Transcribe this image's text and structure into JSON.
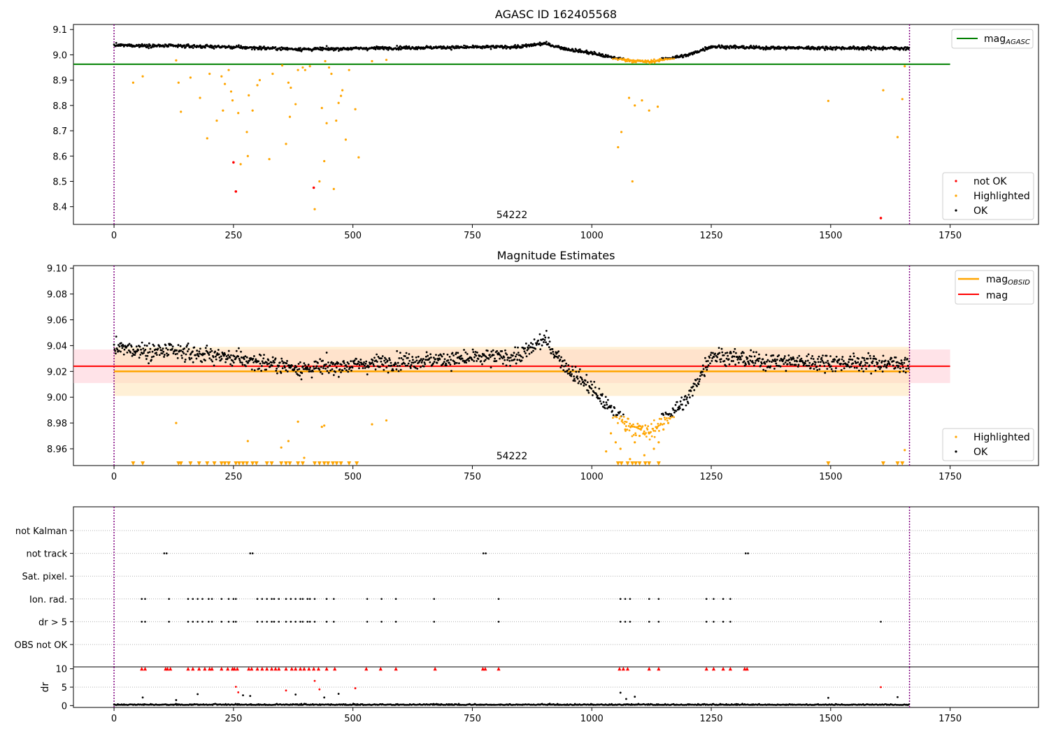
{
  "figure": {
    "colors": {
      "ok": "#000000",
      "highlighted": "#ffa500",
      "not_ok": "#ff0000",
      "mag_agasc": "#008000",
      "mag_obsid": "#ffa500",
      "mag": "#ff0000",
      "obs_boundary": "#800080",
      "band_mag": "#ffc0cb",
      "band_obsid": "#ffe4b5"
    }
  },
  "chart_data": [
    {
      "type": "scatter",
      "title": "AGASC ID 162405568",
      "annotation": "54222",
      "xlim": [
        -85,
        1935
      ],
      "ylim": [
        8.33,
        9.12
      ],
      "x_ticks": [
        0,
        250,
        500,
        750,
        1000,
        1250,
        1500,
        1750
      ],
      "y_ticks": [
        8.4,
        8.5,
        8.6,
        8.7,
        8.8,
        8.9,
        9.0,
        9.1
      ],
      "obs_boundaries": [
        0,
        1665
      ],
      "mag_agasc": 8.963,
      "legend_lines": [
        {
          "label": "mag",
          "sub": "AGASC",
          "position": "top-right"
        }
      ],
      "legend_points": [
        "not OK",
        "Highlighted",
        "OK"
      ],
      "ok_trend": [
        [
          0,
          9.038
        ],
        [
          200,
          9.033
        ],
        [
          400,
          9.022
        ],
        [
          600,
          9.028
        ],
        [
          750,
          9.03
        ],
        [
          850,
          9.032
        ],
        [
          900,
          9.045
        ],
        [
          950,
          9.022
        ],
        [
          1000,
          9.007
        ],
        [
          1040,
          8.99
        ],
        [
          1080,
          8.978
        ],
        [
          1120,
          8.972
        ],
        [
          1160,
          8.986
        ],
        [
          1200,
          8.998
        ],
        [
          1250,
          9.033
        ],
        [
          1350,
          9.028
        ],
        [
          1500,
          9.027
        ],
        [
          1665,
          9.026
        ]
      ],
      "highlighted_outliers": [
        [
          40,
          8.89
        ],
        [
          60,
          8.915
        ],
        [
          130,
          8.978
        ],
        [
          135,
          8.89
        ],
        [
          140,
          8.775
        ],
        [
          160,
          8.91
        ],
        [
          180,
          8.83
        ],
        [
          195,
          8.67
        ],
        [
          200,
          8.925
        ],
        [
          215,
          8.74
        ],
        [
          225,
          8.915
        ],
        [
          228,
          8.78
        ],
        [
          232,
          8.885
        ],
        [
          240,
          8.94
        ],
        [
          245,
          8.855
        ],
        [
          248,
          8.82
        ],
        [
          260,
          8.77
        ],
        [
          265,
          8.568
        ],
        [
          278,
          8.695
        ],
        [
          280,
          8.6
        ],
        [
          282,
          8.84
        ],
        [
          290,
          8.78
        ],
        [
          300,
          8.88
        ],
        [
          305,
          8.9
        ],
        [
          325,
          8.588
        ],
        [
          332,
          8.925
        ],
        [
          352,
          8.958
        ],
        [
          360,
          8.648
        ],
        [
          365,
          8.89
        ],
        [
          368,
          8.755
        ],
        [
          370,
          8.87
        ],
        [
          380,
          8.805
        ],
        [
          385,
          8.94
        ],
        [
          395,
          8.95
        ],
        [
          400,
          8.94
        ],
        [
          410,
          8.955
        ],
        [
          420,
          8.39
        ],
        [
          430,
          8.5
        ],
        [
          435,
          8.79
        ],
        [
          440,
          8.58
        ],
        [
          442,
          8.975
        ],
        [
          445,
          8.73
        ],
        [
          450,
          8.95
        ],
        [
          455,
          8.925
        ],
        [
          460,
          8.47
        ],
        [
          465,
          8.74
        ],
        [
          470,
          8.81
        ],
        [
          475,
          8.838
        ],
        [
          478,
          8.86
        ],
        [
          485,
          8.665
        ],
        [
          492,
          8.94
        ],
        [
          505,
          8.785
        ],
        [
          512,
          8.595
        ],
        [
          540,
          8.975
        ],
        [
          570,
          8.98
        ],
        [
          1055,
          8.635
        ],
        [
          1062,
          8.695
        ],
        [
          1078,
          8.83
        ],
        [
          1085,
          8.5
        ],
        [
          1090,
          8.8
        ],
        [
          1105,
          8.82
        ],
        [
          1120,
          8.78
        ],
        [
          1138,
          8.795
        ],
        [
          1495,
          8.818
        ],
        [
          1610,
          8.86
        ],
        [
          1640,
          8.675
        ],
        [
          1650,
          8.825
        ],
        [
          1655,
          8.955
        ]
      ],
      "not_ok_points": [
        [
          250,
          8.575
        ],
        [
          255,
          8.46
        ],
        [
          418,
          8.475
        ],
        [
          1605,
          8.355
        ]
      ]
    },
    {
      "type": "scatter",
      "title": "Magnitude Estimates",
      "annotation": "54222",
      "xlim": [
        -85,
        1935
      ],
      "ylim": [
        8.947,
        9.102
      ],
      "x_ticks": [
        0,
        250,
        500,
        750,
        1000,
        1250,
        1500,
        1750
      ],
      "y_ticks": [
        8.96,
        8.98,
        9.0,
        9.02,
        9.04,
        9.06,
        9.08,
        9.1
      ],
      "obs_boundaries": [
        0,
        1665
      ],
      "mag": 9.024,
      "mag_band": [
        9.011,
        9.037
      ],
      "mag_obsid": 9.02,
      "mag_obsid_band": [
        9.001,
        9.039
      ],
      "legend_lines": [
        {
          "label": "mag",
          "sub": "OBSID"
        },
        {
          "label": "mag",
          "sub": ""
        }
      ],
      "legend_points": [
        "Highlighted",
        "OK"
      ],
      "ok_trend": [
        [
          0,
          9.038
        ],
        [
          200,
          9.033
        ],
        [
          400,
          9.022
        ],
        [
          600,
          9.028
        ],
        [
          750,
          9.03
        ],
        [
          850,
          9.032
        ],
        [
          900,
          9.045
        ],
        [
          950,
          9.022
        ],
        [
          1000,
          9.007
        ],
        [
          1040,
          8.99
        ],
        [
          1080,
          8.978
        ],
        [
          1120,
          8.972
        ],
        [
          1160,
          8.986
        ],
        [
          1200,
          8.998
        ],
        [
          1250,
          9.033
        ],
        [
          1350,
          9.028
        ],
        [
          1500,
          9.027
        ],
        [
          1665,
          9.026
        ]
      ],
      "highlighted_points": [
        [
          130,
          8.98
        ],
        [
          280,
          8.966
        ],
        [
          350,
          8.961
        ],
        [
          365,
          8.966
        ],
        [
          385,
          8.981
        ],
        [
          398,
          8.953
        ],
        [
          435,
          8.977
        ],
        [
          440,
          8.978
        ],
        [
          540,
          8.979
        ],
        [
          570,
          8.982
        ],
        [
          1030,
          8.958
        ],
        [
          1040,
          8.972
        ],
        [
          1050,
          8.965
        ],
        [
          1060,
          8.96
        ],
        [
          1070,
          8.975
        ],
        [
          1080,
          8.952
        ],
        [
          1090,
          8.965
        ],
        [
          1100,
          8.97
        ],
        [
          1110,
          8.955
        ],
        [
          1120,
          8.972
        ],
        [
          1130,
          8.96
        ],
        [
          1140,
          8.965
        ],
        [
          1150,
          8.975
        ],
        [
          1160,
          8.98
        ],
        [
          1655,
          8.959
        ]
      ],
      "lower_limit_markers": [
        40,
        60,
        135,
        140,
        160,
        178,
        195,
        210,
        225,
        232,
        240,
        255,
        262,
        270,
        278,
        290,
        298,
        320,
        330,
        350,
        360,
        368,
        385,
        395,
        420,
        430,
        440,
        448,
        458,
        466,
        475,
        492,
        508,
        1055,
        1062,
        1075,
        1085,
        1092,
        1100,
        1112,
        1120,
        1140,
        1495,
        1610,
        1640,
        1650
      ]
    },
    {
      "type": "scatter",
      "title": "",
      "xlim": [
        -85,
        1935
      ],
      "x_ticks": [
        0,
        250,
        500,
        750,
        1000,
        1250,
        1500,
        1750
      ],
      "obs_boundaries": [
        0,
        1665
      ],
      "flag_rows": [
        "not Kalman",
        "not track",
        "Sat. pixel.",
        "Ion. rad.",
        "dr > 5",
        "OBS not OK"
      ],
      "flag_points": {
        "not track": [
          105,
          110,
          285,
          290,
          773,
          778,
          1322,
          1327
        ],
        "Ion. rad.": [
          58,
          65,
          115,
          155,
          165,
          175,
          185,
          198,
          205,
          225,
          240,
          250,
          255,
          300,
          310,
          320,
          330,
          335,
          345,
          360,
          370,
          380,
          390,
          395,
          405,
          410,
          420,
          445,
          460,
          530,
          560,
          590,
          670,
          805,
          1060,
          1070,
          1080,
          1120,
          1140,
          1240,
          1255,
          1275,
          1290
        ],
        "dr > 5": [
          58,
          65,
          115,
          155,
          165,
          175,
          185,
          198,
          205,
          225,
          240,
          250,
          255,
          300,
          310,
          320,
          330,
          335,
          345,
          360,
          370,
          380,
          390,
          395,
          405,
          410,
          420,
          445,
          460,
          530,
          560,
          590,
          670,
          805,
          1060,
          1070,
          1080,
          1120,
          1140,
          1240,
          1255,
          1275,
          1290,
          1605
        ]
      }
    },
    {
      "type": "scatter",
      "ylabel": "dr",
      "xlim": [
        -85,
        1935
      ],
      "ylim": [
        -0.5,
        10.5
      ],
      "x_ticks": [
        0,
        250,
        500,
        750,
        1000,
        1250,
        1500,
        1750
      ],
      "y_ticks": [
        0,
        5,
        10
      ],
      "obs_boundaries": [
        0,
        1665
      ],
      "clipped_markers": [
        58,
        65,
        108,
        112,
        118,
        155,
        165,
        178,
        190,
        200,
        205,
        225,
        238,
        248,
        252,
        258,
        282,
        288,
        300,
        310,
        320,
        330,
        338,
        345,
        360,
        372,
        380,
        390,
        398,
        408,
        418,
        428,
        445,
        462,
        528,
        558,
        590,
        672,
        772,
        777,
        805,
        1058,
        1066,
        1075,
        1120,
        1140,
        1240,
        1255,
        1275,
        1290,
        1320,
        1325
      ],
      "outlier_points": [
        [
          60,
          2.2
        ],
        [
          130,
          1.5
        ],
        [
          175,
          3.1
        ],
        [
          255,
          5.1
        ],
        [
          260,
          3.6
        ],
        [
          270,
          2.8
        ],
        [
          285,
          2.6
        ],
        [
          360,
          4.1
        ],
        [
          380,
          3.0
        ],
        [
          420,
          6.7
        ],
        [
          430,
          4.4
        ],
        [
          440,
          2.2
        ],
        [
          470,
          3.2
        ],
        [
          505,
          4.7
        ],
        [
          1060,
          3.5
        ],
        [
          1072,
          1.8
        ],
        [
          1090,
          2.4
        ],
        [
          1495,
          2.1
        ],
        [
          1605,
          5.0
        ],
        [
          1640,
          2.3
        ]
      ]
    }
  ]
}
